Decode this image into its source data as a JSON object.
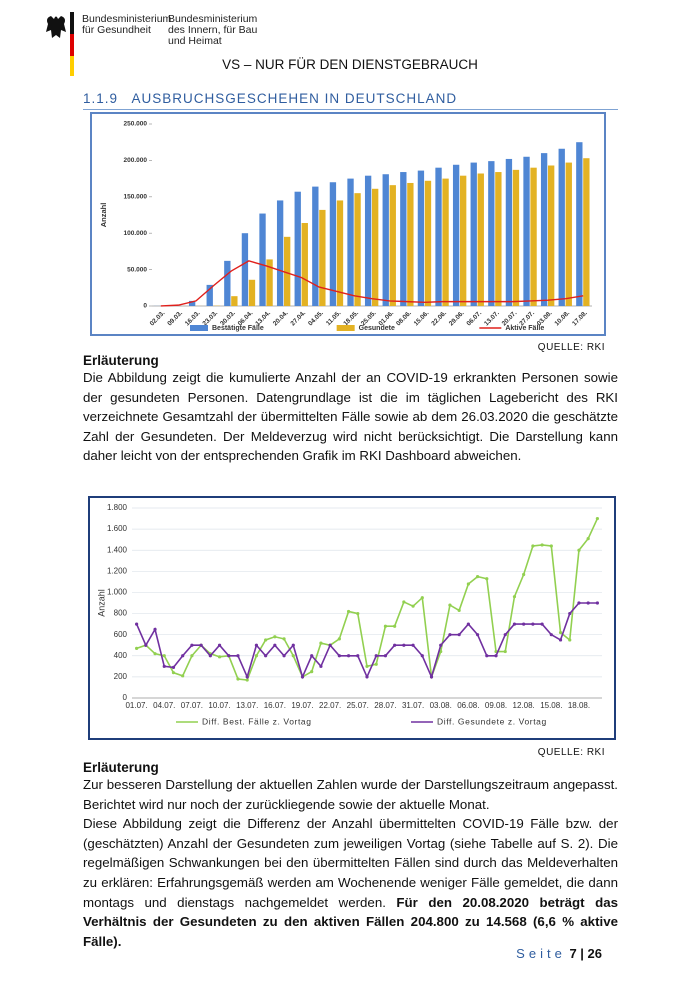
{
  "header": {
    "ministry_1": [
      "Bundesministerium",
      "für Gesundheit"
    ],
    "ministry_2": [
      "Bundesministerium",
      "des Innern, für Bau",
      "und Heimat"
    ],
    "classification": "VS – NUR FÜR DEN DIENSTGEBRAUCH"
  },
  "section": {
    "number": "1.1.9",
    "title": "AUSBRUCHSGESCHEHEN IN DEUTSCHLAND"
  },
  "chart_data": [
    {
      "type": "bar",
      "y_label": "Anzahl",
      "categories": [
        "02.03.",
        "09.03.",
        "16.03.",
        "23.03.",
        "30.03.",
        "06.04.",
        "13.04.",
        "20.04.",
        "27.04.",
        "04.05.",
        "11.05.",
        "18.05.",
        "25.05.",
        "01.06.",
        "08.06.",
        "15.06.",
        "22.06.",
        "29.06.",
        "06.07.",
        "13.07.",
        "20.07.",
        "27.07.",
        "03.08.",
        "10.08.",
        "17.08."
      ],
      "series": [
        {
          "name": "Bestätigte Fälle",
          "color": "#4f86d4",
          "values": [
            150,
            1200,
            7000,
            29000,
            62000,
            100000,
            127000,
            145000,
            157000,
            164000,
            170000,
            175000,
            179000,
            181000,
            184000,
            186000,
            190000,
            194000,
            197000,
            199000,
            202000,
            205000,
            210000,
            216000,
            225000
          ]
        },
        {
          "name": "Gesundete",
          "color": "#e3b223",
          "values": [
            0,
            20,
            100,
            400,
            13500,
            36000,
            64000,
            95000,
            114000,
            132000,
            145000,
            155000,
            161000,
            166000,
            169000,
            172000,
            175000,
            179000,
            182000,
            184000,
            187000,
            190000,
            193000,
            197000,
            203000
          ]
        },
        {
          "name": "Aktive Fälle",
          "color": "#e0201c",
          "type": "line",
          "values": [
            150,
            1200,
            7000,
            28000,
            48000,
            62000,
            55000,
            47000,
            39000,
            26000,
            20000,
            14000,
            10000,
            7000,
            6000,
            5000,
            6000,
            6000,
            6000,
            6000,
            6000,
            7000,
            8000,
            10000,
            14000
          ]
        }
      ],
      "ylim": [
        0,
        250000
      ],
      "yticks": [
        0,
        {
          "value": 50000,
          "label": "50.000"
        },
        {
          "value": 100000,
          "label": "100.000"
        },
        {
          "value": 150000,
          "label": "150.000"
        },
        {
          "value": 200000,
          "label": "200.000"
        },
        {
          "value": 250000,
          "label": "250.000"
        }
      ],
      "grid": false
    },
    {
      "type": "line",
      "y_label": "Anzahl",
      "categories": [
        "01.07.",
        null,
        null,
        "04.07.",
        null,
        null,
        "07.07.",
        null,
        null,
        "10.07.",
        null,
        null,
        "13.07.",
        null,
        null,
        "16.07.",
        null,
        null,
        "19.07.",
        null,
        null,
        "22.07.",
        null,
        null,
        "25.07.",
        null,
        null,
        "28.07.",
        null,
        null,
        "31.07.",
        null,
        null,
        "03.08.",
        null,
        null,
        "06.08.",
        null,
        null,
        "09.08.",
        null,
        null,
        "12.08.",
        null,
        null,
        "15.08.",
        null,
        null,
        "18.08.",
        null,
        null
      ],
      "series": [
        {
          "name": "Diff. Best. Fälle z. Vortag",
          "color": "#92d050",
          "values": [
            470,
            500,
            420,
            400,
            240,
            210,
            400,
            500,
            420,
            390,
            400,
            180,
            170,
            400,
            550,
            580,
            560,
            400,
            200,
            250,
            520,
            500,
            560,
            820,
            800,
            300,
            320,
            680,
            680,
            910,
            870,
            950,
            200,
            440,
            880,
            830,
            1080,
            1150,
            1130,
            440,
            440,
            960,
            1170,
            1440,
            1450,
            1440,
            620,
            550,
            1400,
            1510,
            1700
          ]
        },
        {
          "name": "Diff. Gesundete z. Vortag",
          "color": "#7030a0",
          "values": [
            700,
            500,
            650,
            300,
            290,
            400,
            500,
            500,
            400,
            500,
            400,
            400,
            200,
            500,
            400,
            500,
            400,
            500,
            200,
            400,
            300,
            500,
            400,
            400,
            400,
            200,
            400,
            400,
            500,
            500,
            500,
            400,
            200,
            500,
            600,
            600,
            700,
            600,
            400,
            400,
            600,
            700,
            700,
            700,
            700,
            600,
            550,
            800,
            900,
            900,
            900
          ]
        }
      ],
      "ylim": [
        0,
        1800
      ],
      "yticks": [
        0,
        200,
        400,
        600,
        800,
        {
          "value": 1000,
          "label": "1.000"
        },
        {
          "value": 1200,
          "label": "1.200"
        },
        {
          "value": 1400,
          "label": "1.400"
        },
        {
          "value": 1600,
          "label": "1.600"
        },
        {
          "value": 1800,
          "label": "1.800"
        }
      ],
      "grid": true
    }
  ],
  "explanation_1": {
    "source": "QUELLE: RKI",
    "heading": "Erläuterung",
    "text": "Die Abbildung zeigt die kumulierte Anzahl der an COVID-19 erkrankten Personen sowie der gesundeten Personen. Datengrundlage ist die im täglichen Lagebericht des RKI verzeichnete Gesamtzahl der übermittelten Fälle sowie ab dem 26.03.2020 die geschätzte Zahl der Gesundeten. Der Meldeverzug wird nicht berücksichtigt. Die Darstellung kann daher leicht von der entsprechenden Grafik im RKI Dashboard abweichen."
  },
  "explanation_2": {
    "source": "QUELLE: RKI",
    "heading": "Erläuterung",
    "paragraphs": [
      "Zur besseren Darstellung der aktuellen Zahlen wurde der Darstellungszeitraum angepasst. Berichtet wird nur noch der zurückliegende sowie der aktuelle Monat.",
      "Diese Abbildung zeigt die Differenz der Anzahl übermittelten COVID-19 Fälle bzw. der (geschätzten) Anzahl der Gesundeten zum jeweiligen Vortag (siehe Tabelle auf S. 2). Die regelmäßigen Schwankungen bei den übermittelten Fällen sind durch das Meldeverhalten zu erklären: Erfahrungsgemäß werden am Wochenende weniger Fälle gemeldet, die dann montags und dienstags nachgemeldet werden."
    ],
    "highlight": "Für den 20.08.2020 beträgt das Verhältnis der Gesundeten zu den aktiven Fällen 204.800 zu 14.568 (6,6 % aktive Fälle)."
  },
  "footer": {
    "label": "Seite",
    "pages": "7 | 26"
  }
}
